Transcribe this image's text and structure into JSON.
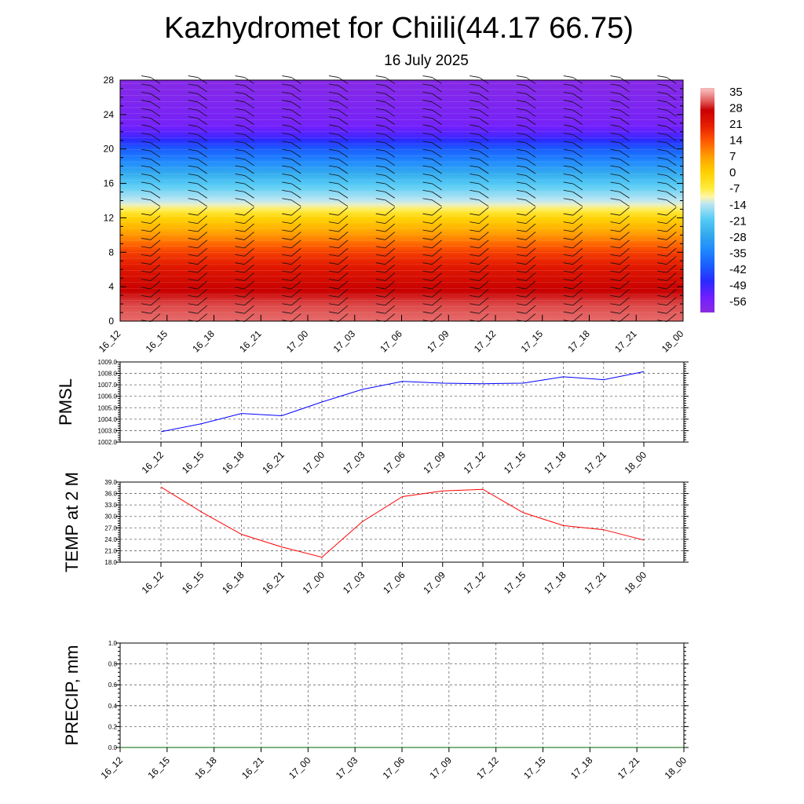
{
  "header": {
    "title": "Kazhydromet for Chiili(44.17 66.75)",
    "subtitle": "16 July 2025"
  },
  "chart_data": [
    {
      "id": "cross-section",
      "type": "heatmap",
      "title": "",
      "xlabel": "",
      "ylabel": "",
      "x_ticks": [
        "16_12",
        "16_15",
        "16_18",
        "16_21",
        "17_00",
        "17_03",
        "17_06",
        "17_09",
        "17_12",
        "17_15",
        "17_18",
        "17_21",
        "18_00"
      ],
      "y_ticks": [
        "0",
        "4",
        "8",
        "12",
        "16",
        "20",
        "24",
        "28"
      ],
      "ylim": [
        0,
        28
      ],
      "colorbar_ticks": [
        "35",
        "28",
        "21",
        "14",
        "7",
        "0",
        "-7",
        "-14",
        "-21",
        "-28",
        "-35",
        "-42",
        "-49",
        "-56"
      ],
      "temperature_profile": [
        {
          "level": 0,
          "value": 33
        },
        {
          "level": 2,
          "value": 31
        },
        {
          "level": 4,
          "value": 27
        },
        {
          "level": 6,
          "value": 23
        },
        {
          "level": 8,
          "value": 17
        },
        {
          "level": 10,
          "value": 8
        },
        {
          "level": 12,
          "value": -1
        },
        {
          "level": 13.5,
          "value": -12
        },
        {
          "level": 16,
          "value": -22
        },
        {
          "level": 18,
          "value": -32
        },
        {
          "level": 20,
          "value": -42
        },
        {
          "level": 21.5,
          "value": -52
        },
        {
          "level": 23,
          "value": -58
        },
        {
          "level": 28,
          "value": -62
        }
      ],
      "wind_barbs": true
    },
    {
      "id": "pmsl",
      "type": "line",
      "ylabel": "PMSL",
      "x_ticks": [
        "16_12",
        "16_15",
        "16_18",
        "16_21",
        "17_00",
        "17_03",
        "17_06",
        "17_09",
        "17_12",
        "17_15",
        "17_18",
        "17_21",
        "18_00"
      ],
      "y_ticks": [
        "1002.0",
        "1003.0",
        "1004.0",
        "1005.0",
        "1006.0",
        "1007.0",
        "1008.0",
        "1009.0"
      ],
      "ylim": [
        1002.0,
        1009.0
      ],
      "grid": true,
      "series": [
        {
          "color": "#0000ff",
          "values": [
            1002.9,
            1003.6,
            1004.5,
            1004.3,
            1005.5,
            1006.6,
            1007.3,
            1007.15,
            1007.1,
            1007.15,
            1007.7,
            1007.45,
            1008.15
          ]
        }
      ]
    },
    {
      "id": "temp2m",
      "type": "line",
      "ylabel": "TEMP at 2 M",
      "x_ticks": [
        "16_12",
        "16_15",
        "16_18",
        "16_21",
        "17_00",
        "17_03",
        "17_06",
        "17_09",
        "17_12",
        "17_15",
        "17_18",
        "17_21",
        "18_00"
      ],
      "y_ticks": [
        "18.0",
        "21.0",
        "24.0",
        "27.0",
        "30.0",
        "33.0",
        "36.0",
        "39.0"
      ],
      "ylim": [
        18.0,
        39.0
      ],
      "grid": true,
      "series": [
        {
          "color": "#ff0000",
          "values": [
            37.7,
            31.2,
            25.3,
            22.0,
            19.3,
            28.6,
            35.2,
            36.7,
            37.1,
            31.0,
            27.6,
            26.5,
            23.8
          ]
        }
      ]
    },
    {
      "id": "precip",
      "type": "line",
      "ylabel": "PRECIP, mm",
      "x_ticks": [
        "16_12",
        "16_15",
        "16_18",
        "16_21",
        "17_00",
        "17_03",
        "17_06",
        "17_09",
        "17_12",
        "17_15",
        "17_18",
        "17_21",
        "18_00"
      ],
      "y_ticks": [
        "0.0",
        "0.2",
        "0.4",
        "0.6",
        "0.8",
        "1.0"
      ],
      "ylim": [
        0.0,
        1.0
      ],
      "grid": true,
      "series": [
        {
          "color": "#006400",
          "values": [
            0,
            0,
            0,
            0,
            0,
            0,
            0,
            0,
            0,
            0,
            0,
            0,
            0
          ]
        }
      ]
    }
  ]
}
